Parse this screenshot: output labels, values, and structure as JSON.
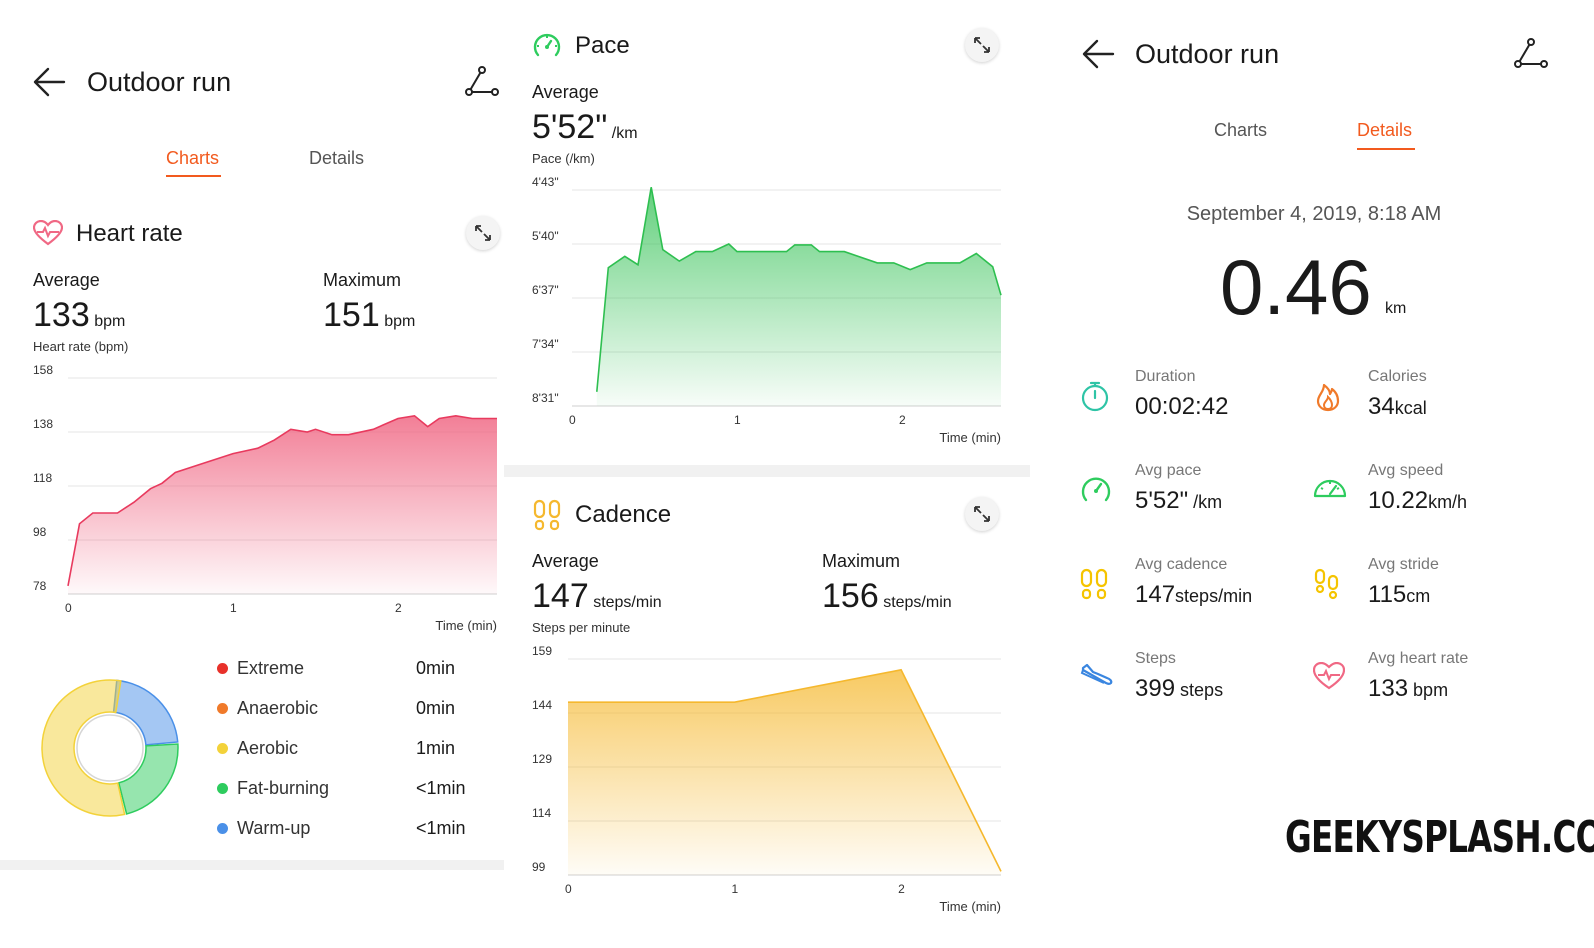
{
  "colors": {
    "accent": "#f25a1e",
    "heart": "#f06884",
    "pace": "#3cc45c",
    "cadence": "#f5b82e"
  },
  "charts_view": {
    "title": "Outdoor run",
    "tabs": [
      {
        "label": "Charts",
        "active": true
      },
      {
        "label": "Details",
        "active": false
      }
    ],
    "heart_rate": {
      "title": "Heart rate",
      "avg_label": "Average",
      "avg_value": "133",
      "avg_unit": "bpm",
      "max_label": "Maximum",
      "max_value": "151",
      "max_unit": "bpm",
      "chart_caption": "Heart rate (bpm)",
      "x_axis_label": "Time (min)"
    },
    "zones": [
      {
        "name": "Extreme",
        "value": "0min",
        "color": "#e8312a",
        "share": 0
      },
      {
        "name": "Anaerobic",
        "value": "0min",
        "color": "#f07a2a",
        "share": 0
      },
      {
        "name": "Aerobic",
        "value": "1min",
        "color": "#f3d23a",
        "share": 0.56
      },
      {
        "name": "Fat-burning",
        "value": "<1min",
        "color": "#2ecc5e",
        "share": 0.22
      },
      {
        "name": "Warm-up",
        "value": "<1min",
        "color": "#4a90e8",
        "share": 0.22
      }
    ],
    "pace": {
      "title": "Pace",
      "avg_label": "Average",
      "avg_value": "5'52\"",
      "avg_unit": "/km",
      "chart_caption": "Pace (/km)",
      "x_axis_label": "Time (min)"
    },
    "cadence": {
      "title": "Cadence",
      "avg_label": "Average",
      "avg_value": "147",
      "avg_unit": "steps/min",
      "max_label": "Maximum",
      "max_value": "156",
      "max_unit": "steps/min",
      "chart_caption": "Steps per minute",
      "x_axis_label": "Time (min)"
    }
  },
  "details_view": {
    "title": "Outdoor run",
    "tabs": [
      {
        "label": "Charts",
        "active": false
      },
      {
        "label": "Details",
        "active": true
      }
    ],
    "date": "September 4, 2019, 8:18 AM",
    "distance": "0.46",
    "distance_unit": "km",
    "metrics": [
      {
        "label": "Duration",
        "value": "00:02:42",
        "unit": "",
        "icon": "stopwatch-icon",
        "color": "#2ec4a6"
      },
      {
        "label": "Calories",
        "value": "34",
        "unit": "kcal",
        "icon": "flame-icon",
        "color": "#f07a2a"
      },
      {
        "label": "Avg pace",
        "value": "5'52\"",
        "unit": " /km",
        "icon": "pace-gauge-icon",
        "color": "#2ecc5e"
      },
      {
        "label": "Avg speed",
        "value": "10.22",
        "unit": "km/h",
        "icon": "speedometer-icon",
        "color": "#2ecc5e"
      },
      {
        "label": "Avg cadence",
        "value": "147",
        "unit": "steps/min",
        "icon": "footprints-icon",
        "color": "#f5c400"
      },
      {
        "label": "Avg stride",
        "value": "115",
        "unit": "cm",
        "icon": "stride-icon",
        "color": "#f5c400"
      },
      {
        "label": "Steps",
        "value": "399",
        "unit": " steps",
        "icon": "shoe-icon",
        "color": "#3a86e0"
      },
      {
        "label": "Avg heart rate",
        "value": "133",
        "unit": " bpm",
        "icon": "heart-icon",
        "color": "#f06884"
      }
    ]
  },
  "watermark": "GEEKYSPLASH.COM",
  "chart_data": [
    {
      "type": "area",
      "name": "heart_rate",
      "ylabel": "Heart rate (bpm)",
      "xlabel": "Time (min)",
      "y_ticks": [
        "158",
        "138",
        "118",
        "98",
        "78"
      ],
      "y_range": [
        78,
        158
      ],
      "x_ticks": [
        "0",
        "1",
        "2"
      ],
      "x_range": [
        0,
        2.6
      ],
      "x": [
        0,
        0.07,
        0.15,
        0.3,
        0.4,
        0.5,
        0.57,
        0.65,
        0.8,
        1.0,
        1.15,
        1.25,
        1.35,
        1.45,
        1.5,
        1.6,
        1.7,
        1.85,
        2.0,
        2.1,
        2.18,
        2.25,
        2.35,
        2.45,
        2.6
      ],
      "y": [
        81,
        104,
        108,
        108,
        112,
        117,
        119,
        123,
        126,
        130,
        132,
        135,
        139,
        138,
        139,
        137,
        137,
        139,
        143,
        144,
        140,
        143,
        144,
        143,
        143
      ],
      "grid": true
    },
    {
      "type": "area",
      "name": "pace",
      "ylabel": "Pace (/km)",
      "xlabel": "Time (min)",
      "y_ticks": [
        "4'43\"",
        "5'40\"",
        "6'37\"",
        "7'34\"",
        "8'31\""
      ],
      "y_range_sec": [
        283,
        511
      ],
      "y_inverted": true,
      "x_ticks": [
        "0",
        "1",
        "2"
      ],
      "x_range": [
        0,
        2.6
      ],
      "x": [
        0.15,
        0.22,
        0.32,
        0.4,
        0.48,
        0.55,
        0.65,
        0.75,
        0.85,
        0.95,
        1.0,
        1.1,
        1.3,
        1.35,
        1.45,
        1.5,
        1.65,
        1.85,
        1.95,
        2.05,
        2.15,
        2.35,
        2.45,
        2.55,
        2.6
      ],
      "y_sec": [
        496,
        365,
        353,
        362,
        280,
        346,
        358,
        348,
        348,
        340,
        348,
        348,
        348,
        341,
        341,
        348,
        348,
        360,
        360,
        367,
        360,
        360,
        350,
        364,
        394
      ],
      "grid": true
    },
    {
      "type": "area",
      "name": "cadence",
      "ylabel": "Steps per minute",
      "xlabel": "Time (min)",
      "y_ticks": [
        "159",
        "144",
        "129",
        "114",
        "99"
      ],
      "y_range": [
        99,
        159
      ],
      "x_ticks": [
        "0",
        "1",
        "2"
      ],
      "x_range": [
        0,
        2.6
      ],
      "x": [
        0,
        1.0,
        2.0,
        2.6
      ],
      "y": [
        147,
        147,
        156,
        100
      ],
      "grid": true
    }
  ]
}
